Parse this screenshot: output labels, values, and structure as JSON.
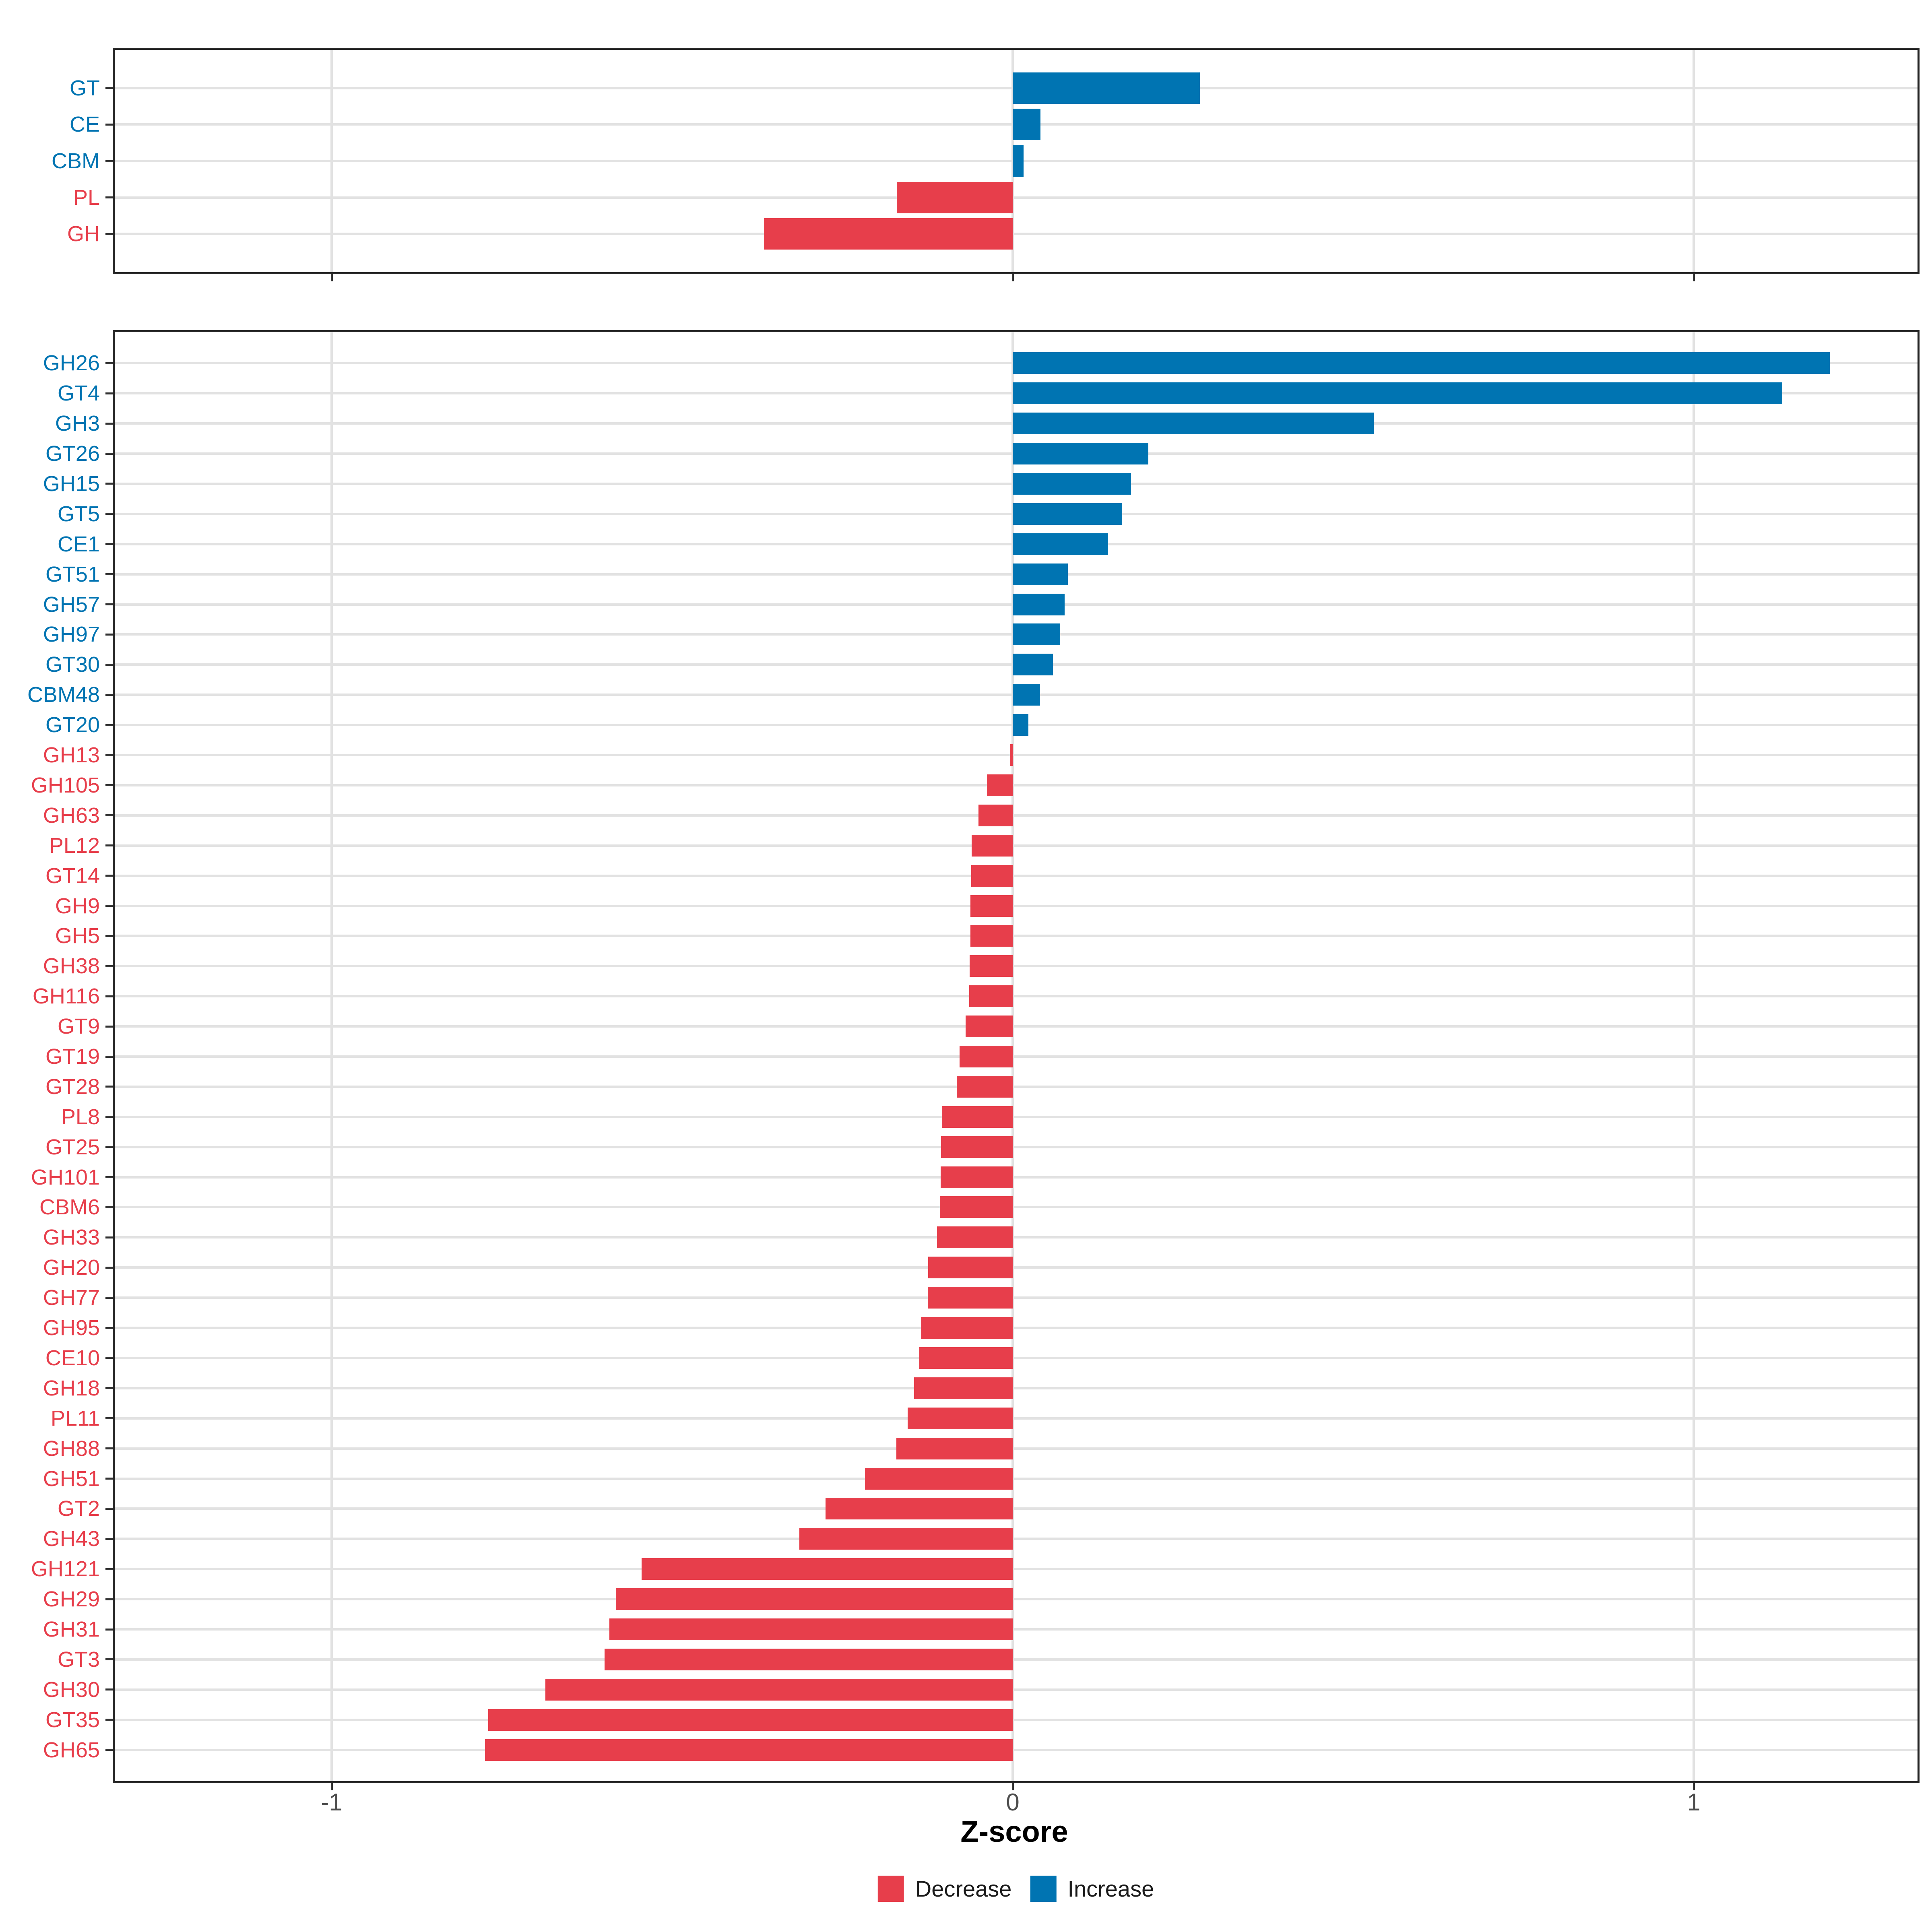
{
  "axis": {
    "xlabel": "Z-score",
    "xticks": [
      {
        "value": -1,
        "label": "-1"
      },
      {
        "value": 0,
        "label": "0"
      },
      {
        "value": 1,
        "label": "1"
      }
    ],
    "tick_label_color": "#4d4d4d"
  },
  "colors": {
    "increase": "#0074b2",
    "decrease": "#e73e4b",
    "gridline": "#e2e2e2",
    "panel_border": "#262626",
    "background": "#ffffff"
  },
  "legend": {
    "position": "bottom",
    "items": [
      {
        "label": "Decrease",
        "color": "#e73e4b"
      },
      {
        "label": "Increase",
        "color": "#0074b2"
      }
    ]
  },
  "chart_data": [
    {
      "type": "bar",
      "orientation": "horizontal",
      "panel": "top",
      "title": "",
      "xlabel": "Z-score",
      "xlim": [
        -1.32,
        1.33
      ],
      "grid": true,
      "categories": [
        "GT",
        "CE",
        "CBM",
        "PL",
        "GH"
      ],
      "values": [
        0.275,
        0.041,
        0.016,
        -0.17,
        -0.365
      ]
    },
    {
      "type": "bar",
      "orientation": "horizontal",
      "panel": "bottom",
      "title": "",
      "xlabel": "Z-score",
      "xlim": [
        -1.32,
        1.33
      ],
      "grid": true,
      "categories": [
        "GH26",
        "GT4",
        "GH3",
        "GT26",
        "GH15",
        "GT5",
        "CE1",
        "GT51",
        "GH57",
        "GH97",
        "GT30",
        "CBM48",
        "GT20",
        "GH13",
        "GH105",
        "GH63",
        "PL12",
        "GT14",
        "GH9",
        "GH5",
        "GH38",
        "GH116",
        "GT9",
        "GT19",
        "GT28",
        "PL8",
        "GT25",
        "GH101",
        "CBM6",
        "GH33",
        "GH20",
        "GH77",
        "GH95",
        "CE10",
        "GH18",
        "PL11",
        "GH88",
        "GH51",
        "GT2",
        "GH43",
        "GH121",
        "GH29",
        "GH31",
        "GT3",
        "GH30",
        "GT35",
        "GH65"
      ],
      "values": [
        1.2,
        1.13,
        0.53,
        0.199,
        0.174,
        0.161,
        0.14,
        0.081,
        0.076,
        0.07,
        0.059,
        0.04,
        0.023,
        -0.004,
        -0.038,
        -0.05,
        -0.06,
        -0.061,
        -0.062,
        -0.062,
        -0.063,
        -0.064,
        -0.069,
        -0.078,
        -0.082,
        -0.104,
        -0.105,
        -0.106,
        -0.107,
        -0.111,
        -0.124,
        -0.125,
        -0.135,
        -0.137,
        -0.145,
        -0.154,
        -0.171,
        -0.217,
        -0.275,
        -0.313,
        -0.545,
        -0.583,
        -0.592,
        -0.599,
        -0.686,
        -0.77,
        -0.775
      ]
    }
  ]
}
